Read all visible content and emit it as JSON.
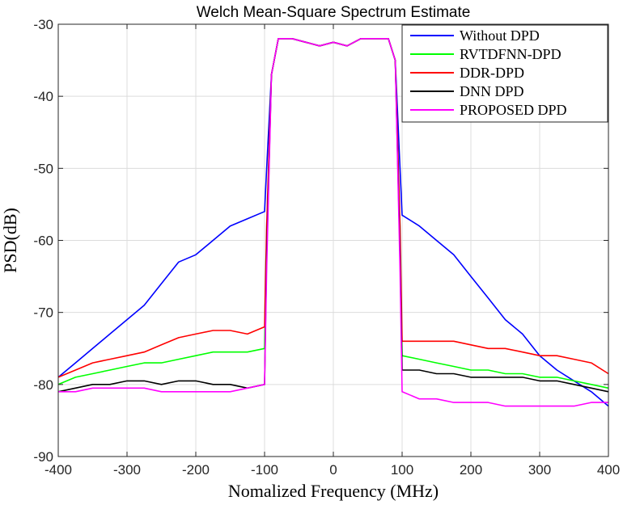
{
  "chart_data": {
    "type": "line",
    "title": "Welch Mean-Square Spectrum Estimate",
    "xlabel": "Nomalized Frequency (MHz)",
    "ylabel": "PSD(dB)",
    "xlim": [
      -400,
      400
    ],
    "ylim": [
      -90,
      -30
    ],
    "xticks": [
      -400,
      -300,
      -200,
      -100,
      0,
      100,
      200,
      300,
      400
    ],
    "yticks": [
      -90,
      -80,
      -70,
      -60,
      -50,
      -40,
      -30
    ],
    "grid": true,
    "legend_position": "top-right",
    "series": [
      {
        "name": "Without DPD",
        "color": "#0000ff",
        "x": [
          -400,
          -375,
          -350,
          -325,
          -300,
          -275,
          -250,
          -225,
          -200,
          -175,
          -150,
          -125,
          -100,
          -97,
          -90,
          -80,
          -60,
          -40,
          -20,
          0,
          20,
          40,
          60,
          80,
          90,
          97,
          100,
          125,
          150,
          175,
          200,
          225,
          250,
          275,
          300,
          325,
          350,
          375,
          400
        ],
        "y": [
          -79,
          -77,
          -75,
          -73,
          -71,
          -69,
          -66,
          -63,
          -62,
          -60,
          -58,
          -57,
          -56,
          -50,
          -37,
          -32,
          -32,
          -32.5,
          -33,
          -32.5,
          -33,
          -32,
          -32,
          -32,
          -35,
          -50,
          -56.5,
          -58,
          -60,
          -62,
          -65,
          -68,
          -71,
          -73,
          -76,
          -78,
          -79.5,
          -81,
          -83
        ]
      },
      {
        "name": "RVTDFNN-DPD",
        "color": "#00ff00",
        "x": [
          -400,
          -375,
          -350,
          -325,
          -300,
          -275,
          -250,
          -225,
          -200,
          -175,
          -150,
          -125,
          -100,
          -97,
          -90,
          -80,
          -60,
          -40,
          -20,
          0,
          20,
          40,
          60,
          80,
          90,
          97,
          100,
          125,
          150,
          175,
          200,
          225,
          250,
          275,
          300,
          325,
          350,
          375,
          400
        ],
        "y": [
          -80,
          -79,
          -78.5,
          -78,
          -77.5,
          -77,
          -77,
          -76.5,
          -76,
          -75.5,
          -75.5,
          -75.5,
          -75,
          -60,
          -37,
          -32,
          -32,
          -32.5,
          -33,
          -32.5,
          -33,
          -32,
          -32,
          -32,
          -35,
          -60,
          -76,
          -76.5,
          -77,
          -77.5,
          -78,
          -78,
          -78.5,
          -78.5,
          -79,
          -79,
          -79.5,
          -80,
          -80.5
        ]
      },
      {
        "name": "DDR-DPD",
        "color": "#ff0000",
        "x": [
          -400,
          -375,
          -350,
          -325,
          -300,
          -275,
          -250,
          -225,
          -200,
          -175,
          -150,
          -125,
          -100,
          -97,
          -90,
          -80,
          -60,
          -40,
          -20,
          0,
          20,
          40,
          60,
          80,
          90,
          97,
          100,
          125,
          150,
          175,
          200,
          225,
          250,
          275,
          300,
          325,
          350,
          375,
          400
        ],
        "y": [
          -79,
          -78,
          -77,
          -76.5,
          -76,
          -75.5,
          -74.5,
          -73.5,
          -73,
          -72.5,
          -72.5,
          -73,
          -72,
          -58,
          -37,
          -32,
          -32,
          -32.5,
          -33,
          -32.5,
          -33,
          -32,
          -32,
          -32,
          -35,
          -58,
          -74,
          -74,
          -74,
          -74,
          -74.5,
          -75,
          -75,
          -75.5,
          -76,
          -76,
          -76.5,
          -77,
          -78.5
        ]
      },
      {
        "name": "DNN DPD",
        "color": "#000000",
        "x": [
          -400,
          -375,
          -350,
          -325,
          -300,
          -275,
          -250,
          -225,
          -200,
          -175,
          -150,
          -125,
          -100,
          -97,
          -90,
          -80,
          -60,
          -40,
          -20,
          0,
          20,
          40,
          60,
          80,
          90,
          97,
          100,
          125,
          150,
          175,
          200,
          225,
          250,
          275,
          300,
          325,
          350,
          375,
          400
        ],
        "y": [
          -81,
          -80.5,
          -80,
          -80,
          -79.5,
          -79.5,
          -80,
          -79.5,
          -79.5,
          -80,
          -80,
          -80.5,
          -80,
          -62,
          -37,
          -32,
          -32,
          -32.5,
          -33,
          -32.5,
          -33,
          -32,
          -32,
          -32,
          -35,
          -62,
          -78,
          -78,
          -78.5,
          -78.5,
          -79,
          -79,
          -79,
          -79,
          -79.5,
          -79.5,
          -80,
          -80.5,
          -81
        ]
      },
      {
        "name": "PROPOSED DPD",
        "color": "#ff00ff",
        "x": [
          -400,
          -375,
          -350,
          -325,
          -300,
          -275,
          -250,
          -225,
          -200,
          -175,
          -150,
          -125,
          -100,
          -97,
          -90,
          -80,
          -60,
          -40,
          -20,
          0,
          20,
          40,
          60,
          80,
          90,
          97,
          100,
          125,
          150,
          175,
          200,
          225,
          250,
          275,
          300,
          325,
          350,
          375,
          400
        ],
        "y": [
          -81,
          -81,
          -80.5,
          -80.5,
          -80.5,
          -80.5,
          -81,
          -81,
          -81,
          -81,
          -81,
          -80.5,
          -80,
          -64,
          -37,
          -32,
          -32,
          -32.5,
          -33,
          -32.5,
          -33,
          -32,
          -32,
          -32,
          -35,
          -64,
          -81,
          -82,
          -82,
          -82.5,
          -82.5,
          -82.5,
          -83,
          -83,
          -83,
          -83,
          -83,
          -82.5,
          -82.5
        ]
      }
    ]
  }
}
